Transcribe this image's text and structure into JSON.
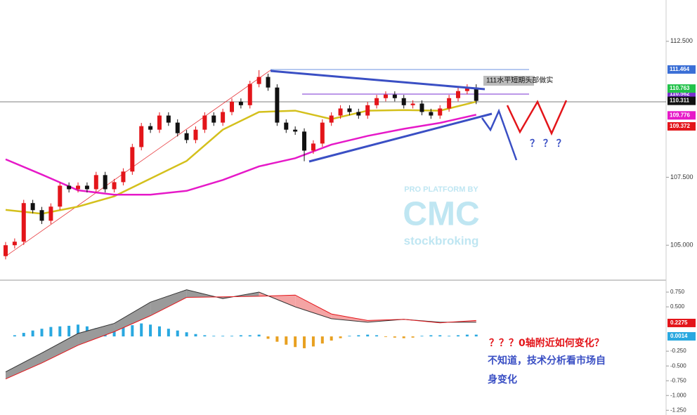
{
  "chart_data": {
    "type": "candlestick",
    "up_color": "#e3151a",
    "down_color": "#111111",
    "open": [
      104.6,
      105.0,
      105.13,
      106.55,
      106.29,
      105.9,
      106.42,
      107.19,
      107.06,
      107.19,
      107.06,
      107.58,
      107.06,
      107.32,
      107.71,
      108.61,
      109.38,
      109.25,
      109.77,
      109.51,
      109.12,
      108.87,
      109.25,
      109.77,
      109.51,
      109.9,
      110.28,
      110.15,
      110.93,
      111.19,
      110.8,
      109.51,
      109.25,
      109.18,
      108.48,
      108.74,
      109.51,
      109.77,
      110.03,
      109.9,
      109.77,
      110.15,
      110.41,
      110.54,
      110.41,
      110.15,
      110.21,
      109.9,
      109.77,
      110.03,
      110.41,
      110.67,
      110.8
    ],
    "high": [
      105.12,
      105.25,
      106.67,
      106.67,
      106.41,
      106.54,
      107.31,
      107.31,
      107.31,
      107.31,
      107.7,
      107.7,
      107.44,
      107.83,
      108.73,
      109.5,
      109.5,
      109.89,
      109.89,
      109.63,
      109.24,
      109.37,
      109.89,
      109.89,
      110.02,
      110.4,
      110.4,
      111.05,
      111.44,
      111.31,
      110.92,
      109.63,
      109.37,
      109.3,
      108.86,
      109.63,
      109.89,
      110.15,
      110.15,
      110.02,
      110.27,
      110.53,
      110.66,
      110.66,
      110.53,
      110.33,
      110.33,
      110.02,
      110.15,
      110.53,
      110.79,
      110.92,
      110.92
    ],
    "low": [
      104.48,
      104.88,
      105.01,
      106.17,
      105.78,
      105.78,
      106.3,
      106.94,
      106.94,
      106.94,
      106.94,
      106.94,
      106.94,
      107.2,
      107.59,
      108.49,
      109.13,
      109.13,
      109.39,
      109.0,
      108.75,
      108.75,
      109.13,
      109.39,
      109.39,
      109.78,
      110.03,
      110.03,
      110.81,
      110.68,
      109.39,
      109.13,
      109.06,
      108.09,
      108.36,
      108.62,
      109.39,
      109.65,
      109.78,
      109.65,
      109.65,
      110.03,
      110.29,
      110.29,
      110.03,
      110.03,
      109.78,
      109.65,
      109.65,
      109.91,
      110.29,
      110.55,
      110.19
    ],
    "close": [
      105.0,
      105.13,
      106.55,
      106.29,
      105.9,
      106.42,
      107.19,
      107.06,
      107.19,
      107.06,
      107.58,
      107.06,
      107.32,
      107.71,
      108.61,
      109.38,
      109.25,
      109.77,
      109.51,
      109.12,
      108.87,
      109.25,
      109.77,
      109.51,
      109.9,
      110.28,
      110.15,
      110.93,
      111.19,
      110.8,
      109.51,
      109.25,
      109.18,
      108.48,
      108.74,
      109.51,
      109.77,
      110.03,
      109.9,
      109.77,
      110.15,
      110.41,
      110.54,
      110.41,
      110.15,
      110.21,
      109.9,
      109.77,
      110.03,
      110.41,
      110.67,
      110.8,
      110.31
    ],
    "ylim": [
      103.74,
      114.02
    ],
    "yticks": [
      {
        "value": 105,
        "label": "105.000"
      },
      {
        "value": 107.5,
        "label": "107.500"
      },
      {
        "value": 112.5,
        "label": "112.500"
      }
    ],
    "moving_averages": [
      {
        "color": "#d4c01c",
        "x": [
          0,
          4,
          8,
          12,
          16,
          20,
          24,
          28,
          32,
          36,
          40,
          44,
          48,
          52
        ],
        "values": [
          106.3,
          106.16,
          106.42,
          106.8,
          107.45,
          108.1,
          109.25,
          109.9,
          109.95,
          109.64,
          109.95,
          109.97,
          109.95,
          110.28
        ]
      },
      {
        "color": "#e619c8",
        "x": [
          0,
          4,
          8,
          12,
          16,
          20,
          24,
          28,
          32,
          36,
          40,
          44,
          48,
          52
        ],
        "values": [
          108.16,
          107.6,
          107.02,
          106.86,
          106.86,
          107.0,
          107.4,
          107.9,
          108.2,
          108.7,
          109.02,
          109.28,
          109.5,
          109.8
        ]
      }
    ],
    "price_labels": [
      {
        "value": 111.464,
        "label": "111.464",
        "color": "#3b6fd6"
      },
      {
        "value": 110.562,
        "label": "110.562",
        "color": "#7a2fd0"
      },
      {
        "value": 110.763,
        "label": "110.763",
        "color": "#22c24a"
      },
      {
        "value": 110.311,
        "label": "110.311",
        "color": "#111111"
      },
      {
        "value": 109.776,
        "label": "109.776",
        "color": "#e619c8"
      },
      {
        "value": 109.372,
        "label": "109.372",
        "color": "#e3151a"
      }
    ],
    "macd": {
      "ylim": [
        -1.33,
        0.94
      ],
      "yticks": [
        {
          "value": 0.75,
          "label": "0.750"
        },
        {
          "value": 0.5,
          "label": "0.500"
        },
        {
          "value": -0.25,
          "label": "-0.250"
        },
        {
          "value": -0.5,
          "label": "-0.500"
        },
        {
          "value": -0.75,
          "label": "-0.750"
        },
        {
          "value": -1,
          "label": "-1.000"
        },
        {
          "value": -1.25,
          "label": "-1.250"
        }
      ],
      "x": [
        0,
        4,
        8,
        12,
        16,
        20,
        24,
        28,
        32,
        36,
        40,
        44,
        48,
        52
      ],
      "macd_line": {
        "color": "#333333",
        "values": [
          -0.6,
          -0.28,
          0.05,
          0.22,
          0.58,
          0.79,
          0.64,
          0.75,
          0.5,
          0.3,
          0.24,
          0.29,
          0.24,
          0.24
        ]
      },
      "signal_line": {
        "color": "#e3151a",
        "values": [
          -0.72,
          -0.45,
          -0.15,
          0.08,
          0.35,
          0.66,
          0.67,
          0.68,
          0.7,
          0.38,
          0.27,
          0.29,
          0.23,
          0.27
        ]
      },
      "histogram": [
        0.0,
        0.02,
        0.06,
        0.1,
        0.13,
        0.16,
        0.17,
        0.18,
        0.2,
        0.17,
        0.14,
        0.12,
        0.14,
        0.17,
        0.19,
        0.22,
        0.2,
        0.17,
        0.13,
        0.1,
        0.07,
        0.04,
        0.02,
        0.01,
        0.01,
        0.01,
        0.02,
        0.02,
        0.03,
        -0.04,
        -0.09,
        -0.14,
        -0.18,
        -0.2,
        -0.17,
        -0.12,
        -0.07,
        -0.03,
        0.01,
        0.02,
        0.03,
        0.02,
        -0.01,
        -0.02,
        -0.03,
        -0.02,
        0.01,
        0.02,
        0.02,
        0.01,
        0.02,
        0.03,
        0.03
      ],
      "hist_up_color": "#29a8e0",
      "hist_down_color": "#e8a020",
      "labels": [
        {
          "value": 0.2275,
          "label": "0.2275",
          "color": "#e3151a"
        },
        {
          "value": 0.0014,
          "label": "0.0014",
          "color": "#29a8e0"
        }
      ]
    }
  },
  "annotations": {
    "box_note": "111水平短期头部做实",
    "question_marks": "？ ？ ？",
    "question": "？？？0轴附近如何变化？",
    "answer_line1": "不知道，技术分析看市场自",
    "answer_line2": "身变化"
  },
  "watermark": {
    "top": "PRO PLATFORM BY",
    "logo": "CMC",
    "bottom": "stockbroking"
  }
}
